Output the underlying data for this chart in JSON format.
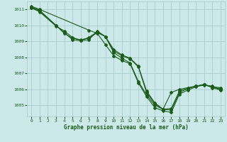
{
  "x_label": "Graphe pression niveau de la mer (hPa)",
  "xlim": [
    -0.5,
    23.5
  ],
  "ylim": [
    1004.3,
    1011.5
  ],
  "yticks": [
    1005,
    1006,
    1007,
    1008,
    1009,
    1010,
    1011
  ],
  "xticks": [
    0,
    1,
    2,
    3,
    4,
    5,
    6,
    7,
    8,
    9,
    10,
    11,
    12,
    13,
    14,
    15,
    16,
    17,
    18,
    19,
    20,
    21,
    22,
    23
  ],
  "background_color": "#cce8e8",
  "grid_color": "#aacccc",
  "line_color": "#1a5c1a",
  "line1_x": [
    0,
    1,
    3,
    4,
    5,
    6,
    7,
    8,
    9,
    10,
    11,
    12,
    13,
    14,
    15,
    16,
    17,
    18,
    19,
    20,
    21,
    22,
    23
  ],
  "line1_y": [
    1011.1,
    1010.9,
    1010.0,
    1009.5,
    1009.2,
    1009.1,
    1009.2,
    1009.55,
    1009.3,
    1008.5,
    1008.15,
    1007.95,
    1007.45,
    1005.9,
    1005.15,
    1004.75,
    1004.7,
    1005.8,
    1006.05,
    1006.2,
    1006.3,
    1006.15,
    1006.1
  ],
  "line2_x": [
    0,
    1,
    3,
    4,
    5,
    6,
    7,
    8,
    9,
    10,
    11,
    12,
    13,
    14,
    15,
    16,
    17,
    18,
    19,
    20,
    21,
    22,
    23
  ],
  "line2_y": [
    1011.1,
    1010.85,
    1009.95,
    1009.65,
    1009.25,
    1009.05,
    1009.1,
    1009.65,
    1009.3,
    1008.4,
    1008.1,
    1007.9,
    1007.4,
    1005.8,
    1005.1,
    1004.75,
    1005.8,
    1006.0,
    1006.1,
    1006.2,
    1006.25,
    1006.2,
    1006.0
  ],
  "line3_x": [
    0,
    1,
    3,
    4,
    5,
    6,
    7,
    8,
    9,
    10,
    11,
    12,
    13,
    14,
    15,
    16,
    17,
    18,
    19,
    20,
    21,
    22,
    23
  ],
  "line3_y": [
    1011.15,
    1010.95,
    1010.0,
    1009.55,
    1009.1,
    1009.05,
    1009.25,
    1009.6,
    1009.3,
    1008.3,
    1007.95,
    1007.65,
    1006.5,
    1005.65,
    1005.0,
    1004.75,
    1004.8,
    1005.9,
    1006.05,
    1006.2,
    1006.3,
    1006.15,
    1006.0
  ],
  "line4_x": [
    0,
    1,
    7,
    8,
    9,
    10,
    11,
    12,
    13,
    14,
    15,
    16,
    17,
    18,
    19,
    20,
    21,
    22,
    23
  ],
  "line4_y": [
    1011.2,
    1011.0,
    1009.7,
    1009.5,
    1008.8,
    1008.1,
    1007.8,
    1007.6,
    1006.4,
    1005.55,
    1004.85,
    1004.65,
    1004.55,
    1005.7,
    1005.95,
    1006.15,
    1006.3,
    1006.1,
    1005.95
  ]
}
